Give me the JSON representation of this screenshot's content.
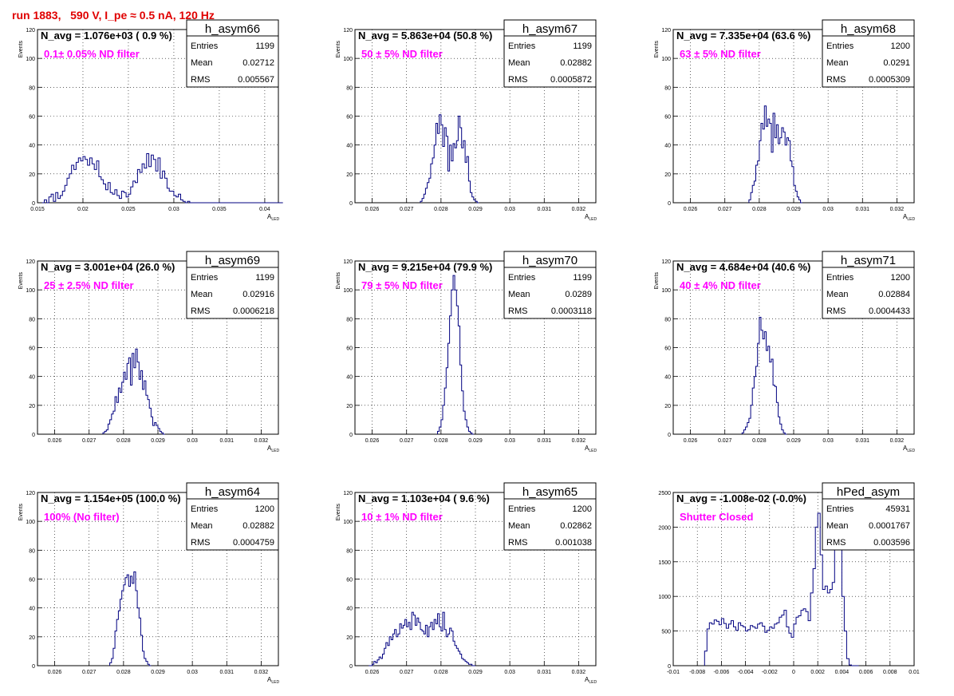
{
  "page_title": "run 1883,   590 V, I_pe ≈ 0.5 nA, 120 Hz",
  "colors": {
    "histogram_line": "#000080",
    "annotation": "#ff00ff",
    "title": "#e00000",
    "grid": "#000000"
  },
  "chart_data": [
    {
      "type": "histogram",
      "name": "h_asym66",
      "nav": "N_avg = 1.076e+03 ( 0.9 %)",
      "label": "0.1± 0.05% ND filter",
      "stats": [
        [
          "Entries",
          "1199"
        ],
        [
          "Mean",
          "0.02712"
        ],
        [
          "RMS",
          "0.005567"
        ]
      ],
      "xlabel": "A",
      "xsub": "LED",
      "ylabel": "Events",
      "xlim": [
        0.015,
        0.0415
      ],
      "ylim": [
        0,
        120
      ],
      "xticks": [
        [
          0.015,
          "0.015"
        ],
        [
          0.02,
          "0.02"
        ],
        [
          0.025,
          "0.025"
        ],
        [
          0.03,
          "0.03"
        ],
        [
          0.035,
          "0.035"
        ],
        [
          0.04,
          "0.04"
        ]
      ],
      "yticks": [
        [
          0,
          "0"
        ],
        [
          20,
          "20"
        ],
        [
          40,
          "40"
        ],
        [
          60,
          "60"
        ],
        [
          80,
          "80"
        ],
        [
          100,
          "100"
        ],
        [
          120,
          "120"
        ]
      ],
      "bins_start": 0.0155,
      "bin_width": 0.00025,
      "values": [
        0,
        2,
        0,
        4,
        6,
        1,
        7,
        3,
        5,
        8,
        12,
        17,
        20,
        26,
        23,
        28,
        31,
        29,
        32,
        30,
        26,
        31,
        27,
        23,
        29,
        18,
        16,
        13,
        9,
        14,
        7,
        6,
        9,
        5,
        3,
        8,
        7,
        4,
        6,
        11,
        15,
        14,
        23,
        21,
        27,
        24,
        34,
        25,
        33,
        30,
        22,
        31,
        17,
        22,
        17,
        10,
        8,
        8,
        5,
        4,
        6,
        2,
        1,
        0,
        1,
        0,
        0,
        0,
        0,
        0,
        0,
        0,
        0,
        0,
        0,
        0,
        0,
        0,
        0,
        0,
        0,
        0,
        0,
        0,
        0,
        0,
        0,
        0,
        0,
        0,
        0,
        0,
        0,
        0,
        0,
        0,
        0,
        0,
        0,
        0,
        0,
        0,
        0,
        0,
        0,
        0
      ],
      "legend": "top-right"
    },
    {
      "type": "histogram",
      "name": "h_asym67",
      "nav": "N_avg = 5.863e+04 (50.8 %)",
      "label": "50 ± 5% ND filter",
      "stats": [
        [
          "Entries",
          "1199"
        ],
        [
          "Mean",
          "0.02882"
        ],
        [
          "RMS",
          "0.0005872"
        ]
      ],
      "xlabel": "A",
      "xsub": "LED",
      "ylabel": "Events",
      "xlim": [
        0.0255,
        0.0325
      ],
      "ylim": [
        0,
        120
      ],
      "xticks": [
        [
          0.026,
          "0.026"
        ],
        [
          0.027,
          "0.027"
        ],
        [
          0.028,
          "0.028"
        ],
        [
          0.029,
          "0.029"
        ],
        [
          0.03,
          "0.03"
        ],
        [
          0.031,
          "0.031"
        ],
        [
          0.032,
          "0.032"
        ]
      ],
      "yticks": [
        [
          0,
          "0"
        ],
        [
          20,
          "20"
        ],
        [
          40,
          "40"
        ],
        [
          60,
          "60"
        ],
        [
          80,
          "80"
        ],
        [
          100,
          "100"
        ],
        [
          120,
          "120"
        ]
      ],
      "bins_start": 0.0274,
      "bin_width": 5e-05,
      "values": [
        1,
        3,
        6,
        10,
        14,
        17,
        27,
        31,
        40,
        55,
        48,
        61,
        54,
        39,
        52,
        46,
        22,
        40,
        29,
        41,
        38,
        43,
        60,
        52,
        38,
        43,
        28,
        32,
        15,
        7,
        4,
        2,
        1,
        0
      ],
      "legend": "top-right"
    },
    {
      "type": "histogram",
      "name": "h_asym68",
      "nav": "N_avg = 7.335e+04 (63.6 %)",
      "label": "63 ± 5% ND filter",
      "stats": [
        [
          "Entries",
          "1200"
        ],
        [
          "Mean",
          "0.0291"
        ],
        [
          "RMS",
          "0.0005309"
        ]
      ],
      "xlabel": "A",
      "xsub": "LED",
      "ylabel": "Events",
      "xlim": [
        0.0255,
        0.0325
      ],
      "ylim": [
        0,
        120
      ],
      "xticks": [
        [
          0.026,
          "0.026"
        ],
        [
          0.027,
          "0.027"
        ],
        [
          0.028,
          "0.028"
        ],
        [
          0.029,
          "0.029"
        ],
        [
          0.03,
          "0.03"
        ],
        [
          0.031,
          "0.031"
        ],
        [
          0.032,
          "0.032"
        ]
      ],
      "yticks": [
        [
          0,
          "0"
        ],
        [
          20,
          "20"
        ],
        [
          40,
          "40"
        ],
        [
          60,
          "60"
        ],
        [
          80,
          "80"
        ],
        [
          100,
          "100"
        ],
        [
          120,
          "120"
        ]
      ],
      "bins_start": 0.0277,
      "bin_width": 5e-05,
      "values": [
        2,
        7,
        12,
        15,
        26,
        29,
        43,
        55,
        51,
        67,
        53,
        58,
        55,
        35,
        62,
        45,
        54,
        41,
        45,
        52,
        49,
        40,
        45,
        43,
        29,
        25,
        12,
        8,
        4,
        2,
        0
      ],
      "legend": "top-right"
    },
    {
      "type": "histogram",
      "name": "h_asym69",
      "nav": "N_avg = 3.001e+04 (26.0 %)",
      "label": "25 ± 2.5% ND filter",
      "stats": [
        [
          "Entries",
          "1199"
        ],
        [
          "Mean",
          "0.02916"
        ],
        [
          "RMS",
          "0.0006218"
        ]
      ],
      "xlabel": "A",
      "xsub": "LED",
      "ylabel": "Events",
      "xlim": [
        0.0255,
        0.0325
      ],
      "ylim": [
        0,
        120
      ],
      "xticks": [
        [
          0.026,
          "0.026"
        ],
        [
          0.027,
          "0.027"
        ],
        [
          0.028,
          "0.028"
        ],
        [
          0.029,
          "0.029"
        ],
        [
          0.03,
          "0.03"
        ],
        [
          0.031,
          "0.031"
        ],
        [
          0.032,
          "0.032"
        ]
      ],
      "yticks": [
        [
          0,
          "0"
        ],
        [
          20,
          "20"
        ],
        [
          40,
          "40"
        ],
        [
          60,
          "60"
        ],
        [
          80,
          "80"
        ],
        [
          100,
          "100"
        ],
        [
          120,
          "120"
        ]
      ],
      "bins_start": 0.0274,
      "bin_width": 5e-05,
      "values": [
        1,
        2,
        3,
        7,
        10,
        14,
        16,
        26,
        22,
        32,
        29,
        36,
        43,
        38,
        49,
        53,
        34,
        56,
        46,
        59,
        50,
        38,
        44,
        31,
        37,
        27,
        24,
        18,
        12,
        6,
        8,
        6,
        4,
        2,
        1,
        0
      ],
      "legend": "top-right"
    },
    {
      "type": "histogram",
      "name": "h_asym70",
      "nav": "N_avg = 9.215e+04 (79.9 %)",
      "label": "79 ± 5% ND filter",
      "stats": [
        [
          "Entries",
          "1199"
        ],
        [
          "Mean",
          "0.0289"
        ],
        [
          "RMS",
          "0.0003118"
        ]
      ],
      "xlabel": "A",
      "xsub": "LED",
      "ylabel": "Events",
      "xlim": [
        0.0255,
        0.0325
      ],
      "ylim": [
        0,
        120
      ],
      "xticks": [
        [
          0.026,
          "0.026"
        ],
        [
          0.027,
          "0.027"
        ],
        [
          0.028,
          "0.028"
        ],
        [
          0.029,
          "0.029"
        ],
        [
          0.03,
          "0.03"
        ],
        [
          0.031,
          "0.031"
        ],
        [
          0.032,
          "0.032"
        ]
      ],
      "yticks": [
        [
          0,
          "0"
        ],
        [
          20,
          "20"
        ],
        [
          40,
          "40"
        ],
        [
          60,
          "60"
        ],
        [
          80,
          "80"
        ],
        [
          100,
          "100"
        ],
        [
          120,
          "120"
        ]
      ],
      "bins_start": 0.0279,
      "bin_width": 5e-05,
      "values": [
        2,
        5,
        10,
        20,
        32,
        46,
        63,
        82,
        100,
        110,
        100,
        89,
        75,
        48,
        30,
        16,
        10,
        5,
        2,
        1,
        0
      ],
      "legend": "top-right"
    },
    {
      "type": "histogram",
      "name": "h_asym71",
      "nav": "N_avg = 4.684e+04 (40.6 %)",
      "label": "40 ± 4% ND filter",
      "stats": [
        [
          "Entries",
          "1200"
        ],
        [
          "Mean",
          "0.02884"
        ],
        [
          "RMS",
          "0.0004433"
        ]
      ],
      "xlabel": "A",
      "xsub": "LED",
      "ylabel": "Events",
      "xlim": [
        0.0255,
        0.0325
      ],
      "ylim": [
        0,
        120
      ],
      "xticks": [
        [
          0.026,
          "0.026"
        ],
        [
          0.027,
          "0.027"
        ],
        [
          0.028,
          "0.028"
        ],
        [
          0.029,
          "0.029"
        ],
        [
          0.03,
          "0.03"
        ],
        [
          0.031,
          "0.031"
        ],
        [
          0.032,
          "0.032"
        ]
      ],
      "yticks": [
        [
          0,
          "0"
        ],
        [
          20,
          "20"
        ],
        [
          40,
          "40"
        ],
        [
          60,
          "60"
        ],
        [
          80,
          "80"
        ],
        [
          100,
          "100"
        ],
        [
          120,
          "120"
        ]
      ],
      "bins_start": 0.0275,
      "bin_width": 5e-05,
      "values": [
        1,
        3,
        5,
        8,
        11,
        20,
        32,
        40,
        47,
        63,
        81,
        72,
        66,
        71,
        58,
        61,
        50,
        52,
        34,
        33,
        22,
        12,
        7,
        3,
        1,
        0
      ],
      "legend": "top-right"
    },
    {
      "type": "histogram",
      "name": "h_asym64",
      "nav": "N_avg = 1.154e+05 (100.0 %)",
      "label": "100% (No filter)",
      "stats": [
        [
          "Entries",
          "1200"
        ],
        [
          "Mean",
          "0.02882"
        ],
        [
          "RMS",
          "0.0004759"
        ]
      ],
      "xlabel": "A",
      "xsub": "LED",
      "ylabel": "Events",
      "xlim": [
        0.0255,
        0.0325
      ],
      "ylim": [
        0,
        120
      ],
      "xticks": [
        [
          0.026,
          "0.026"
        ],
        [
          0.027,
          "0.027"
        ],
        [
          0.028,
          "0.028"
        ],
        [
          0.029,
          "0.029"
        ],
        [
          0.03,
          "0.03"
        ],
        [
          0.031,
          "0.031"
        ],
        [
          0.032,
          "0.032"
        ]
      ],
      "yticks": [
        [
          0,
          "0"
        ],
        [
          20,
          "20"
        ],
        [
          40,
          "40"
        ],
        [
          60,
          "60"
        ],
        [
          80,
          "80"
        ],
        [
          100,
          "100"
        ],
        [
          120,
          "120"
        ]
      ],
      "bins_start": 0.0276,
      "bin_width": 5e-05,
      "values": [
        2,
        5,
        12,
        24,
        32,
        38,
        46,
        52,
        56,
        61,
        63,
        55,
        62,
        57,
        65,
        52,
        40,
        33,
        21,
        10,
        5,
        3,
        1,
        0
      ],
      "legend": "top-right"
    },
    {
      "type": "histogram",
      "name": "h_asym65",
      "nav": "N_avg = 1.103e+04 ( 9.6 %)",
      "label": "10 ± 1% ND filter",
      "stats": [
        [
          "Entries",
          "1200"
        ],
        [
          "Mean",
          "0.02862"
        ],
        [
          "RMS",
          "0.001038"
        ]
      ],
      "xlabel": "A",
      "xsub": "LED",
      "ylabel": "Events",
      "xlim": [
        0.0255,
        0.0325
      ],
      "ylim": [
        0,
        120
      ],
      "xticks": [
        [
          0.026,
          "0.026"
        ],
        [
          0.027,
          "0.027"
        ],
        [
          0.028,
          "0.028"
        ],
        [
          0.029,
          "0.029"
        ],
        [
          0.03,
          "0.03"
        ],
        [
          0.031,
          "0.031"
        ],
        [
          0.032,
          "0.032"
        ]
      ],
      "yticks": [
        [
          0,
          "0"
        ],
        [
          20,
          "20"
        ],
        [
          40,
          "40"
        ],
        [
          60,
          "60"
        ],
        [
          80,
          "80"
        ],
        [
          100,
          "100"
        ],
        [
          120,
          "120"
        ]
      ],
      "bins_start": 0.0259,
      "bin_width": 5e-05,
      "values": [
        0,
        0,
        1,
        3,
        2,
        4,
        6,
        5,
        8,
        12,
        16,
        14,
        20,
        18,
        22,
        25,
        20,
        22,
        29,
        26,
        28,
        32,
        27,
        30,
        25,
        37,
        35,
        28,
        33,
        30,
        25,
        24,
        22,
        28,
        20,
        27,
        30,
        25,
        32,
        29,
        36,
        27,
        24,
        37,
        25,
        20,
        22,
        26,
        24,
        17,
        14,
        12,
        10,
        8,
        5,
        4,
        3,
        2,
        1,
        1,
        0,
        0
      ],
      "legend": "top-right"
    },
    {
      "type": "histogram",
      "name": "hPed_asym",
      "nav": "N_avg = -1.008e-02 (-0.0%)",
      "label": "Shutter Closed",
      "stats": [
        [
          "Entries",
          "45931"
        ],
        [
          "Mean",
          "0.0001767"
        ],
        [
          "RMS",
          "0.003596"
        ]
      ],
      "xlabel": "",
      "xsub": "",
      "ylabel": "",
      "xlim": [
        -0.01,
        0.01
      ],
      "ylim": [
        0,
        2500
      ],
      "xticks": [
        [
          -0.01,
          "-0.01"
        ],
        [
          -0.008,
          "-0.008"
        ],
        [
          -0.006,
          "-0.006"
        ],
        [
          -0.004,
          "-0.004"
        ],
        [
          -0.002,
          "-0.002"
        ],
        [
          0,
          "0"
        ],
        [
          0.002,
          "0.002"
        ],
        [
          0.004,
          "0.004"
        ],
        [
          0.006,
          "0.006"
        ],
        [
          0.008,
          "0.008"
        ],
        [
          0.01,
          "0.01"
        ]
      ],
      "yticks": [
        [
          0,
          "0"
        ],
        [
          500,
          "500"
        ],
        [
          1000,
          "1000"
        ],
        [
          1500,
          "1500"
        ],
        [
          2000,
          "2000"
        ],
        [
          2500,
          "2500"
        ]
      ],
      "bins_start": -0.0074,
      "bin_width": 0.0002,
      "values": [
        210,
        530,
        620,
        600,
        660,
        640,
        590,
        680,
        610,
        540,
        600,
        650,
        560,
        510,
        620,
        580,
        560,
        500,
        520,
        580,
        560,
        540,
        600,
        620,
        570,
        480,
        510,
        560,
        540,
        600,
        620,
        700,
        730,
        800,
        560,
        470,
        410,
        600,
        700,
        720,
        800,
        820,
        780,
        650,
        1050,
        1400,
        2000,
        2200,
        1600,
        1100,
        1150,
        1050,
        1100,
        1200,
        1800,
        2300,
        1700,
        1000,
        500,
        100,
        10,
        0,
        0,
        0
      ],
      "legend": "top-right"
    }
  ]
}
